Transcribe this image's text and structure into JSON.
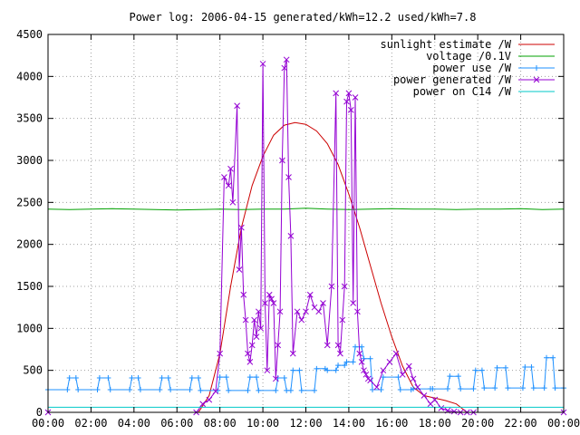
{
  "chart_data": {
    "type": "line",
    "title": "Power log: 2006-04-15 generated/kWh=12.2 used/kWh=7.8",
    "xlabel": "",
    "ylabel": "",
    "x_unit": "hours",
    "xlim": [
      0,
      24
    ],
    "ylim": [
      0,
      4500
    ],
    "x_ticks": [
      0,
      2,
      4,
      6,
      8,
      10,
      12,
      14,
      16,
      18,
      20,
      22,
      24
    ],
    "x_tick_labels": [
      "00:00",
      "02:00",
      "04:00",
      "06:00",
      "08:00",
      "10:00",
      "12:00",
      "14:00",
      "16:00",
      "18:00",
      "20:00",
      "22:00",
      "00:00"
    ],
    "y_ticks": [
      0,
      500,
      1000,
      1500,
      2000,
      2500,
      3000,
      3500,
      4000,
      4500
    ],
    "grid": true,
    "legend_position": "top-right",
    "series": [
      {
        "name": "sunlight estimate /W",
        "color": "#cc0000",
        "marker": "none",
        "x": [
          0,
          7.0,
          7.5,
          8.0,
          8.5,
          9.0,
          9.5,
          10.0,
          10.5,
          11.0,
          11.5,
          12.0,
          12.5,
          13.0,
          13.5,
          14.0,
          14.5,
          15.0,
          15.5,
          16.0,
          16.5,
          17.0,
          17.5,
          18.0,
          18.5,
          19.0,
          19.5,
          24
        ],
        "values": [
          0,
          0,
          200,
          700,
          1500,
          2200,
          2700,
          3050,
          3300,
          3420,
          3450,
          3430,
          3350,
          3200,
          2950,
          2600,
          2200,
          1750,
          1300,
          900,
          550,
          300,
          200,
          170,
          140,
          100,
          0,
          0
        ]
      },
      {
        "name": "voltage /0.1V",
        "color": "#00a000",
        "marker": "none",
        "x": [
          0,
          1,
          2,
          3,
          4,
          5,
          6,
          7,
          8,
          9,
          10,
          11,
          12,
          13,
          14,
          15,
          16,
          17,
          18,
          19,
          20,
          21,
          22,
          23,
          24
        ],
        "values": [
          2420,
          2415,
          2420,
          2425,
          2420,
          2415,
          2410,
          2415,
          2420,
          2415,
          2420,
          2420,
          2430,
          2420,
          2415,
          2420,
          2425,
          2420,
          2420,
          2415,
          2420,
          2420,
          2425,
          2415,
          2420
        ]
      },
      {
        "name": "power use /W",
        "color": "#1e90ff",
        "marker": "plus",
        "x": [
          0,
          0.9,
          1.0,
          1.3,
          1.4,
          2.3,
          2.4,
          2.8,
          2.9,
          3.8,
          3.9,
          4.2,
          4.3,
          5.2,
          5.3,
          5.6,
          5.7,
          6.6,
          6.7,
          7.0,
          7.1,
          7.9,
          8.0,
          8.3,
          8.4,
          9.3,
          9.4,
          9.7,
          9.8,
          10.6,
          10.7,
          11.0,
          11.1,
          11.3,
          11.4,
          11.7,
          11.8,
          12.4,
          12.5,
          12.9,
          13.0,
          13.4,
          13.5,
          13.8,
          13.9,
          14.2,
          14.3,
          14.6,
          14.7,
          15.0,
          15.1,
          15.5,
          15.6,
          16.3,
          16.4,
          16.9,
          17.0,
          17.8,
          17.9,
          18.6,
          18.7,
          19.1,
          19.2,
          19.8,
          19.9,
          20.2,
          20.3,
          20.8,
          20.9,
          21.3,
          21.4,
          22.1,
          22.2,
          22.5,
          22.6,
          23.1,
          23.2,
          23.5,
          23.6,
          24
        ],
        "values": [
          270,
          270,
          410,
          410,
          270,
          270,
          410,
          410,
          270,
          270,
          410,
          410,
          270,
          270,
          410,
          410,
          270,
          270,
          410,
          410,
          260,
          260,
          420,
          420,
          260,
          260,
          420,
          420,
          260,
          260,
          410,
          410,
          260,
          260,
          500,
          500,
          260,
          260,
          520,
          520,
          500,
          500,
          560,
          560,
          600,
          600,
          780,
          780,
          640,
          640,
          270,
          270,
          420,
          420,
          270,
          270,
          280,
          280,
          280,
          280,
          430,
          430,
          280,
          280,
          500,
          500,
          290,
          290,
          530,
          530,
          290,
          290,
          540,
          540,
          290,
          290,
          650,
          650,
          290,
          290
        ]
      },
      {
        "name": "power generated /W",
        "color": "#9400d3",
        "marker": "cross",
        "x": [
          0,
          6.9,
          7.2,
          7.5,
          7.8,
          8.0,
          8.2,
          8.4,
          8.5,
          8.6,
          8.8,
          8.9,
          9.0,
          9.1,
          9.2,
          9.3,
          9.4,
          9.5,
          9.6,
          9.7,
          9.8,
          9.9,
          10.0,
          10.1,
          10.2,
          10.3,
          10.4,
          10.5,
          10.6,
          10.7,
          10.8,
          10.9,
          11.0,
          11.1,
          11.2,
          11.3,
          11.4,
          11.6,
          11.8,
          12.0,
          12.2,
          12.4,
          12.6,
          12.8,
          13.0,
          13.2,
          13.4,
          13.5,
          13.6,
          13.7,
          13.8,
          13.9,
          14.0,
          14.1,
          14.2,
          14.3,
          14.4,
          14.5,
          14.6,
          14.7,
          14.8,
          14.9,
          15.0,
          15.3,
          15.6,
          15.9,
          16.2,
          16.5,
          16.8,
          17.0,
          17.2,
          17.5,
          17.8,
          18.0,
          18.3,
          18.6,
          18.9,
          19.2,
          19.5,
          19.8,
          24
        ],
        "values": [
          0,
          0,
          100,
          150,
          250,
          700,
          2800,
          2700,
          2900,
          2500,
          3650,
          1700,
          2200,
          1400,
          1100,
          700,
          600,
          800,
          1100,
          900,
          1200,
          1000,
          4150,
          1300,
          500,
          1400,
          1350,
          1300,
          400,
          800,
          1200,
          3000,
          4100,
          4200,
          2800,
          2100,
          700,
          1200,
          1100,
          1200,
          1400,
          1250,
          1200,
          1300,
          800,
          1500,
          3800,
          800,
          700,
          1100,
          1500,
          3700,
          3800,
          3600,
          1300,
          3750,
          1200,
          700,
          600,
          500,
          450,
          400,
          380,
          300,
          500,
          600,
          700,
          450,
          550,
          400,
          300,
          200,
          100,
          150,
          50,
          20,
          10,
          0,
          0,
          0,
          0
        ]
      },
      {
        "name": "power on C14 /W",
        "color": "#00c8c8",
        "marker": "none",
        "x": [
          0,
          24
        ],
        "values": [
          60,
          60
        ]
      }
    ]
  }
}
